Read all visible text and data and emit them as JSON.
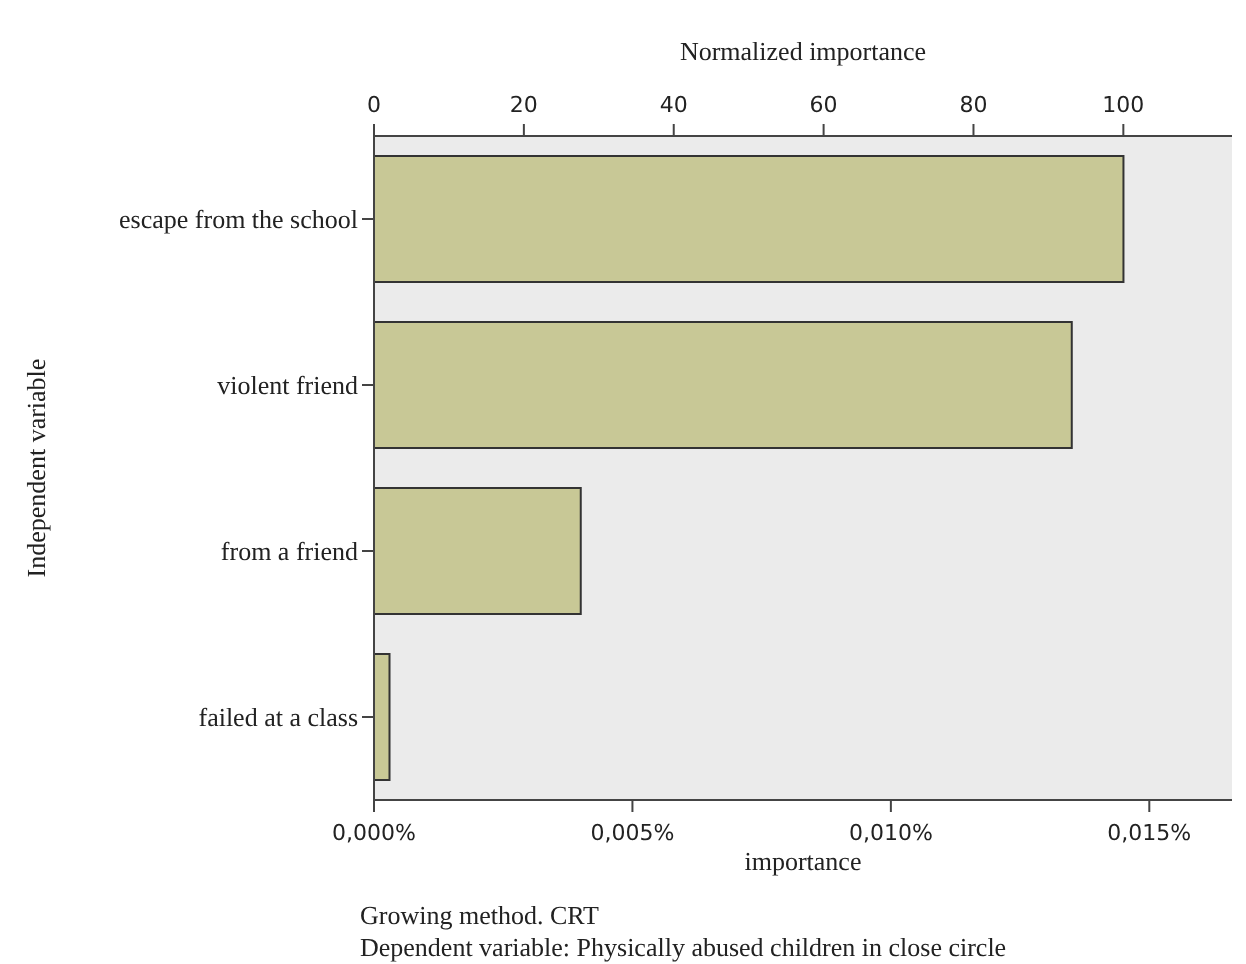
{
  "chart_data": {
    "type": "bar",
    "orientation": "horizontal",
    "xlabel": "importance",
    "x2label": "Normalized importance",
    "ylabel": "Independent variable",
    "categories": [
      "escape from the school",
      "violent friend",
      "from a friend",
      "failed at a class"
    ],
    "values": [
      0.0145,
      0.0135,
      0.004,
      0.0003
    ],
    "color": "#c8c896",
    "xlim": [
      0,
      0.0166
    ],
    "xticks": [
      {
        "value": 0,
        "label": "0,000%"
      },
      {
        "value": 0.005,
        "label": "0,005%"
      },
      {
        "value": 0.01,
        "label": "0,010%"
      },
      {
        "value": 0.015,
        "label": "0,015%"
      }
    ],
    "x2lim": [
      0,
      114.5
    ],
    "x2ticks": [
      0,
      20,
      40,
      60,
      80,
      100
    ],
    "annotations": [
      "Growing method. CRT",
      "Dependent variable: Physically abused children in close circle"
    ]
  }
}
